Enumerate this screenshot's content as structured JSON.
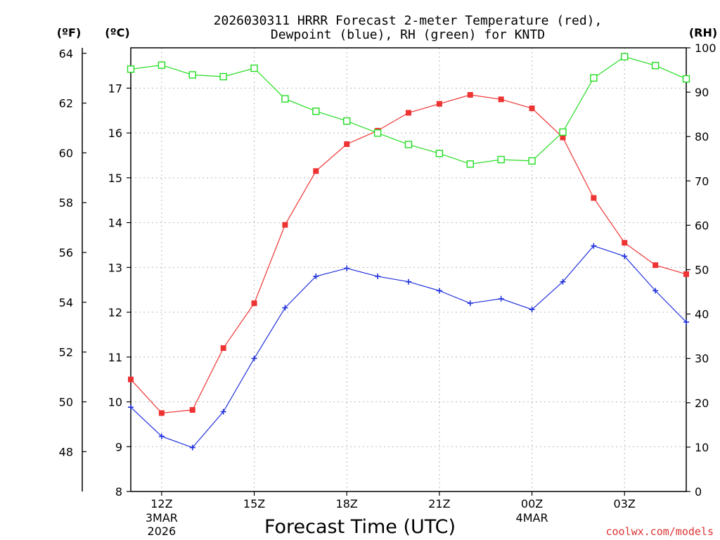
{
  "chart_data": {
    "type": "line",
    "title_line1": "2026030311 HRRR Forecast 2-meter Temperature (red),",
    "title_line2": "Dewpoint (blue), RH (green) for KNTD",
    "xlabel": "Forecast Time (UTC)",
    "watermark": "coolwx.com/models",
    "unit_labels": {
      "fahrenheit": "(ºF)",
      "celsius": "(ºC)",
      "rh": "(RH)"
    },
    "hours": [
      11,
      12,
      13,
      14,
      15,
      16,
      17,
      18,
      19,
      20,
      21,
      22,
      23,
      24,
      25,
      26,
      27,
      28,
      29
    ],
    "xlim": [
      11,
      29
    ],
    "x_ticks": [
      {
        "hour": 12,
        "label": "12Z",
        "sub1": "3MAR",
        "sub2": "2026"
      },
      {
        "hour": 15,
        "label": "15Z",
        "sub1": "",
        "sub2": ""
      },
      {
        "hour": 18,
        "label": "18Z",
        "sub1": "",
        "sub2": ""
      },
      {
        "hour": 21,
        "label": "21Z",
        "sub1": "",
        "sub2": ""
      },
      {
        "hour": 24,
        "label": "00Z",
        "sub1": "4MAR",
        "sub2": ""
      },
      {
        "hour": 27,
        "label": "03Z",
        "sub1": "",
        "sub2": ""
      }
    ],
    "celsius_axis": {
      "range": [
        8,
        17.9
      ],
      "ticks": [
        8,
        9,
        10,
        11,
        12,
        13,
        14,
        15,
        16,
        17
      ]
    },
    "fahrenheit_axis": {
      "ticks": [
        48,
        50,
        52,
        54,
        56,
        58,
        60,
        62,
        64
      ]
    },
    "rh_axis": {
      "range": [
        0,
        100
      ],
      "ticks": [
        0,
        10,
        20,
        30,
        40,
        50,
        60,
        70,
        80,
        90,
        100
      ]
    },
    "series": [
      {
        "name": "2-meter Temperature",
        "color": "#ee3333",
        "marker": "filled-square",
        "axis": "celsius",
        "values": [
          10.5,
          9.75,
          9.82,
          11.2,
          12.2,
          13.95,
          15.15,
          15.75,
          16.05,
          16.45,
          16.65,
          16.85,
          16.75,
          16.55,
          15.9,
          14.55,
          13.55,
          13.05,
          12.85
        ]
      },
      {
        "name": "Dewpoint",
        "color": "#2233dd",
        "marker": "plus",
        "axis": "celsius",
        "values": [
          9.88,
          9.23,
          8.98,
          9.78,
          10.97,
          12.1,
          12.8,
          12.98,
          12.8,
          12.68,
          12.48,
          12.2,
          12.3,
          12.06,
          12.68,
          13.48,
          13.25,
          12.48,
          11.78
        ]
      },
      {
        "name": "Relative Humidity",
        "color": "#22dd22",
        "marker": "open-square",
        "axis": "rh",
        "values": [
          95.2,
          96.1,
          93.9,
          93.5,
          95.4,
          88.5,
          85.7,
          83.5,
          80.8,
          78.2,
          76.2,
          73.8,
          74.8,
          74.5,
          81.0,
          93.2,
          98.0,
          96.0,
          93.0
        ]
      }
    ]
  }
}
